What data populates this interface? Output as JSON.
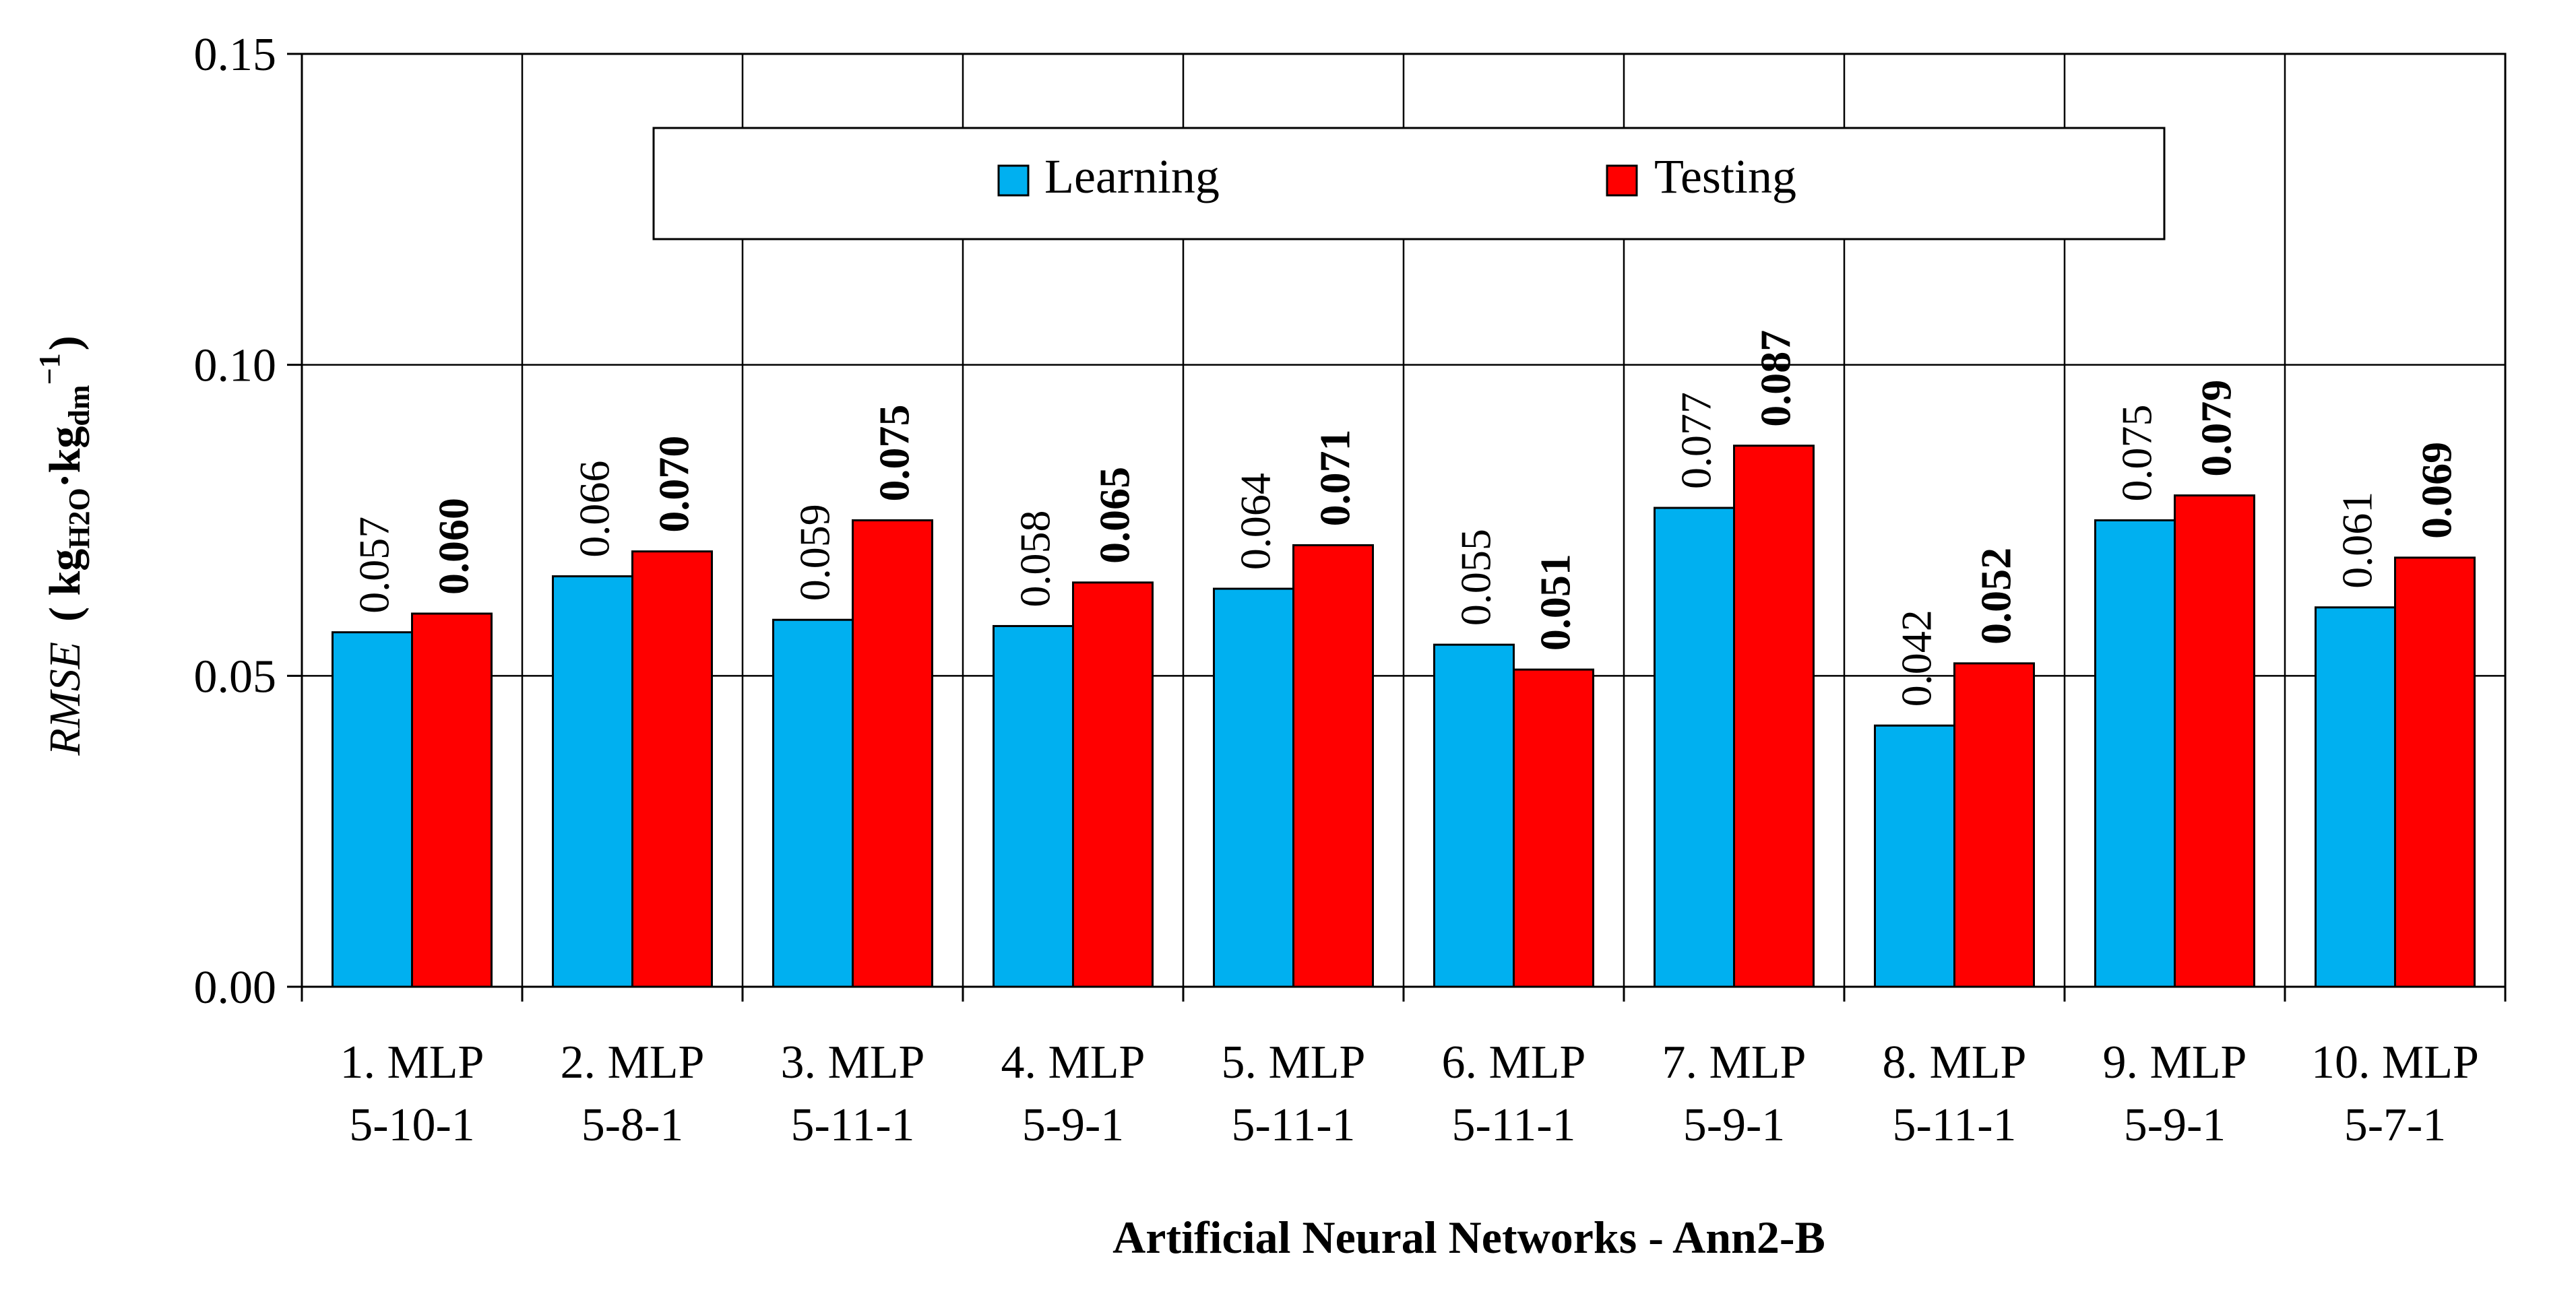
{
  "chart_data": {
    "type": "bar",
    "title": "",
    "xlabel": "Artificial Neural Networks - Ann2-B",
    "ylabel": {
      "main": "RMSE",
      "unit_open": "( kg",
      "unit_sub1": "H2O",
      "unit_mid": "·kg",
      "unit_sub2": "dm",
      "unit_sup": "−1",
      "unit_close": ")"
    },
    "ylim": [
      0,
      0.15
    ],
    "yticks": [
      {
        "value": 0.0,
        "label": "0.00"
      },
      {
        "value": 0.05,
        "label": "0.05"
      },
      {
        "value": 0.1,
        "label": "0.10"
      },
      {
        "value": 0.15,
        "label": "0.15"
      }
    ],
    "grid": true,
    "legend_position": "top-center",
    "categories": [
      {
        "line1": "1. MLP",
        "line2": "5-10-1"
      },
      {
        "line1": "2. MLP",
        "line2": "5-8-1"
      },
      {
        "line1": "3. MLP",
        "line2": "5-11-1"
      },
      {
        "line1": "4. MLP",
        "line2": "5-9-1"
      },
      {
        "line1": "5. MLP",
        "line2": "5-11-1"
      },
      {
        "line1": "6. MLP",
        "line2": "5-11-1"
      },
      {
        "line1": "7. MLP",
        "line2": "5-9-1"
      },
      {
        "line1": "8. MLP",
        "line2": "5-11-1"
      },
      {
        "line1": "9. MLP",
        "line2": "5-9-1"
      },
      {
        "line1": "10. MLP",
        "line2": "5-7-1"
      }
    ],
    "series": [
      {
        "name": "Learning",
        "color": "#00B0F0",
        "label_bold": false,
        "values": [
          0.057,
          0.066,
          0.059,
          0.058,
          0.064,
          0.055,
          0.077,
          0.042,
          0.075,
          0.061
        ],
        "labels": [
          "0.057",
          "0.066",
          "0.059",
          "0.058",
          "0.064",
          "0.055",
          "0.077",
          "0.042",
          "0.075",
          "0.061"
        ]
      },
      {
        "name": "Testing",
        "color": "#FF0000",
        "label_bold": true,
        "values": [
          0.06,
          0.07,
          0.075,
          0.065,
          0.071,
          0.051,
          0.087,
          0.052,
          0.079,
          0.069
        ],
        "labels": [
          "0.060",
          "0.070",
          "0.075",
          "0.065",
          "0.071",
          "0.051",
          "0.087",
          "0.052",
          "0.079",
          "0.069"
        ]
      }
    ]
  }
}
